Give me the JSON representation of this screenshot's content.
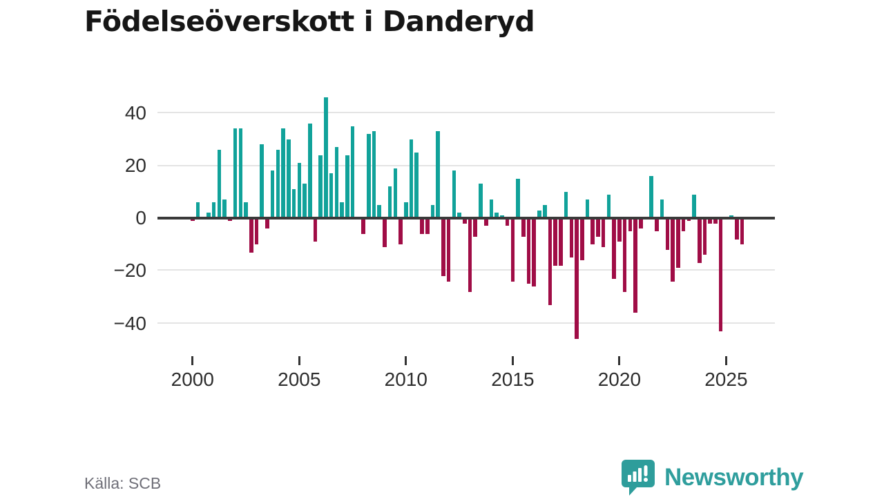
{
  "title": "Födelseöverskott i Danderyd",
  "source": "Källa: SCB",
  "logo": {
    "text": "Newsworthy"
  },
  "chart_data": {
    "type": "bar",
    "title": "Födelseöverskott i Danderyd",
    "frequency": "quarterly",
    "x_ticks": [
      "2000",
      "2005",
      "2010",
      "2015",
      "2020",
      "2025"
    ],
    "y_ticks": [
      40,
      20,
      0,
      -20,
      -40
    ],
    "y_tick_labels": [
      "40",
      "20",
      "0",
      "−20",
      "−40"
    ],
    "ylim": [
      -48,
      48
    ],
    "grid": "horizontal",
    "legend": "none",
    "colors": {
      "positive": "#11a29a",
      "negative": "#a00d46"
    },
    "series": [
      {
        "name": "Födelseöverskott",
        "by_year": [
          {
            "year": 2000,
            "values": [
              -1,
              6,
              0,
              2
            ]
          },
          {
            "year": 2001,
            "values": [
              6,
              26,
              7,
              -1
            ]
          },
          {
            "year": 2002,
            "values": [
              34,
              34,
              6,
              -13
            ]
          },
          {
            "year": 2003,
            "values": [
              -10,
              28,
              -4,
              18
            ]
          },
          {
            "year": 2004,
            "values": [
              26,
              34,
              30,
              11
            ]
          },
          {
            "year": 2005,
            "values": [
              21,
              13,
              36,
              -9
            ]
          },
          {
            "year": 2006,
            "values": [
              24,
              46,
              17,
              27
            ]
          },
          {
            "year": 2007,
            "values": [
              6,
              24,
              35,
              0
            ]
          },
          {
            "year": 2008,
            "values": [
              -6,
              32,
              33,
              5
            ]
          },
          {
            "year": 2009,
            "values": [
              -11,
              12,
              19,
              -10
            ]
          },
          {
            "year": 2010,
            "values": [
              6,
              30,
              25,
              -6
            ]
          },
          {
            "year": 2011,
            "values": [
              -6,
              5,
              33,
              -22
            ]
          },
          {
            "year": 2012,
            "values": [
              -24,
              18,
              2,
              -2
            ]
          },
          {
            "year": 2013,
            "values": [
              -28,
              -7,
              13,
              -3
            ]
          },
          {
            "year": 2014,
            "values": [
              7,
              2,
              1,
              -3
            ]
          },
          {
            "year": 2015,
            "values": [
              -24,
              15,
              -7,
              -25
            ]
          },
          {
            "year": 2016,
            "values": [
              -26,
              3,
              5,
              -33
            ]
          },
          {
            "year": 2017,
            "values": [
              -18,
              -18,
              10,
              -15
            ]
          },
          {
            "year": 2018,
            "values": [
              -46,
              -16,
              7,
              -10
            ]
          },
          {
            "year": 2019,
            "values": [
              -7,
              -11,
              9,
              -23
            ]
          },
          {
            "year": 2020,
            "values": [
              -9,
              -28,
              -5,
              -36
            ]
          },
          {
            "year": 2021,
            "values": [
              -4,
              0,
              16,
              -5
            ]
          },
          {
            "year": 2022,
            "values": [
              7,
              -12,
              -24,
              -19
            ]
          },
          {
            "year": 2023,
            "values": [
              -5,
              -1,
              9,
              -17
            ]
          },
          {
            "year": 2024,
            "values": [
              -14,
              -2,
              -2,
              -43
            ]
          },
          {
            "year": 2025,
            "values": [
              0,
              1,
              -8,
              -10
            ]
          }
        ]
      }
    ]
  }
}
